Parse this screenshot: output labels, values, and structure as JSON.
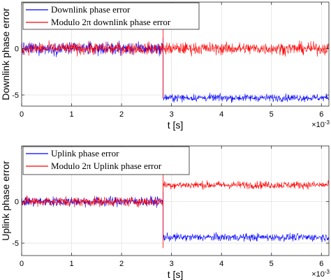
{
  "chart_data": [
    {
      "type": "line",
      "xlabel": "t [s]",
      "ylabel": "Downlink phase error",
      "x_exponent_label": "×10",
      "x_exponent_power": "-3",
      "xlim": [
        0,
        0.00615
      ],
      "ylim": [
        -6.2,
        5
      ],
      "xticks": [
        0,
        0.001,
        0.002,
        0.003,
        0.004,
        0.005,
        0.006
      ],
      "xtick_labels": [
        "0",
        "1",
        "2",
        "3",
        "4",
        "5",
        "6"
      ],
      "yticks": [
        -5,
        0
      ],
      "ytick_labels": [
        "-5",
        "0"
      ],
      "grid": true,
      "legend_position": "top-left",
      "discontinuity_x": 0.00283,
      "series": [
        {
          "name": "Downlink phase error",
          "color": "#0000ff",
          "segments": [
            {
              "x_start": 0,
              "x_end": 0.00283,
              "mean": 0,
              "noise_amplitude": 1.0
            },
            {
              "x_start": 0.00283,
              "x_end": 0.00615,
              "mean": -5.3,
              "noise_amplitude": 0.6
            }
          ]
        },
        {
          "name": "Modulo 2π downlink phase error",
          "color": "#ff0000",
          "segments": [
            {
              "x_start": 0,
              "x_end": 0.00615,
              "mean": 0,
              "noise_amplitude": 1.0
            }
          ]
        }
      ]
    },
    {
      "type": "line",
      "xlabel": "t [s]",
      "ylabel": "Uplink phase error",
      "x_exponent_label": "×10",
      "x_exponent_power": "-3",
      "xlim": [
        0,
        0.00615
      ],
      "ylim": [
        -6.5,
        6.7
      ],
      "xticks": [
        0,
        0.001,
        0.002,
        0.003,
        0.004,
        0.005,
        0.006
      ],
      "xtick_labels": [
        "0",
        "1",
        "2",
        "3",
        "4",
        "5",
        "6"
      ],
      "yticks": [
        -5,
        0
      ],
      "ytick_labels": [
        "-5",
        "0"
      ],
      "grid": true,
      "legend_position": "top-left",
      "discontinuity_x": 0.00283,
      "series": [
        {
          "name": "Uplink phase error",
          "color": "#0000ff",
          "segments": [
            {
              "x_start": 0,
              "x_end": 0.00283,
              "mean": 0,
              "noise_amplitude": 0.9
            },
            {
              "x_start": 0.00283,
              "x_end": 0.00615,
              "mean": -4.3,
              "noise_amplitude": 0.7
            }
          ]
        },
        {
          "name": "Modulo 2π Uplink phase error",
          "color": "#ff0000",
          "segments": [
            {
              "x_start": 0,
              "x_end": 0.00283,
              "mean": 0,
              "noise_amplitude": 0.9
            },
            {
              "x_start": 0.00283,
              "x_end": 0.00615,
              "mean": 2.0,
              "noise_amplitude": 0.7
            }
          ]
        }
      ]
    }
  ]
}
